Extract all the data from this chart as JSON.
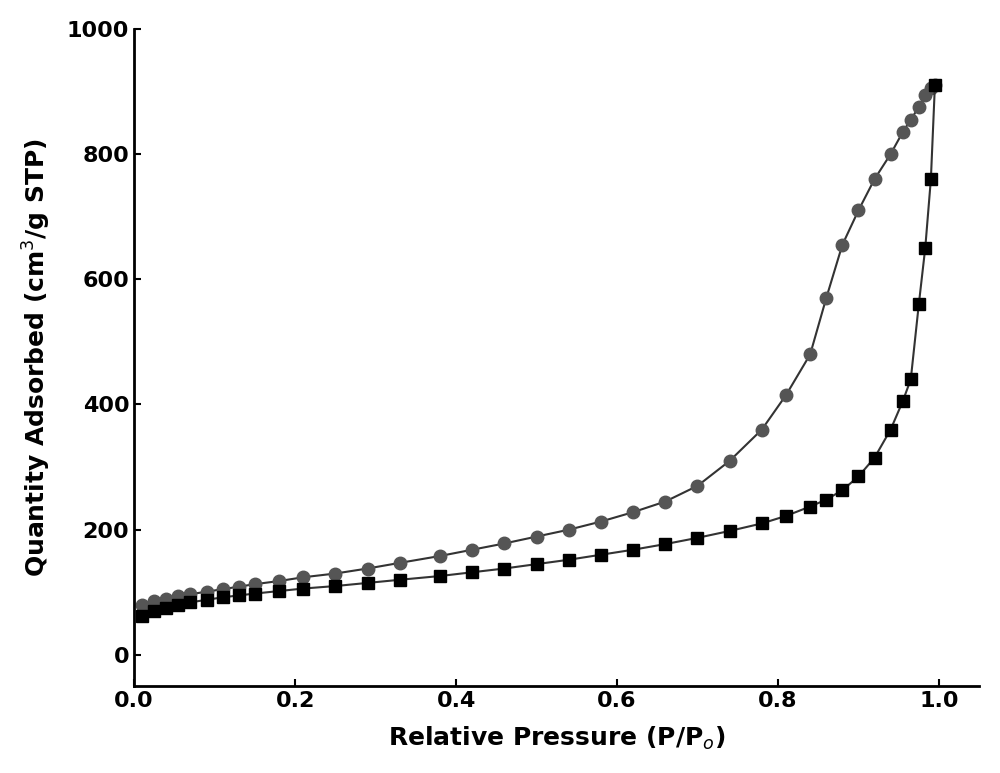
{
  "adsorption_x": [
    0.01,
    0.025,
    0.04,
    0.055,
    0.07,
    0.09,
    0.11,
    0.13,
    0.15,
    0.18,
    0.21,
    0.25,
    0.29,
    0.33,
    0.38,
    0.42,
    0.46,
    0.5,
    0.54,
    0.58,
    0.62,
    0.66,
    0.7,
    0.74,
    0.78,
    0.81,
    0.84,
    0.86,
    0.88,
    0.9,
    0.92,
    0.94,
    0.955,
    0.965,
    0.975,
    0.983,
    0.99,
    0.995
  ],
  "adsorption_y": [
    62,
    70,
    75,
    80,
    84,
    88,
    92,
    95,
    98,
    102,
    106,
    110,
    115,
    120,
    126,
    132,
    138,
    145,
    152,
    160,
    168,
    177,
    187,
    198,
    210,
    222,
    237,
    248,
    263,
    285,
    315,
    360,
    405,
    440,
    560,
    650,
    760,
    910
  ],
  "desorption_x": [
    0.995,
    0.99,
    0.983,
    0.975,
    0.965,
    0.955,
    0.94,
    0.92,
    0.9,
    0.88,
    0.86,
    0.84,
    0.81,
    0.78,
    0.74,
    0.7,
    0.66,
    0.62,
    0.58,
    0.54,
    0.5,
    0.46,
    0.42,
    0.38,
    0.33,
    0.29,
    0.25,
    0.21,
    0.18,
    0.15,
    0.13,
    0.11,
    0.09,
    0.07,
    0.055,
    0.04,
    0.025,
    0.01
  ],
  "desorption_y": [
    910,
    905,
    895,
    875,
    855,
    835,
    800,
    760,
    710,
    655,
    570,
    480,
    415,
    360,
    310,
    270,
    245,
    228,
    213,
    200,
    189,
    178,
    168,
    158,
    147,
    138,
    130,
    124,
    118,
    113,
    109,
    105,
    101,
    97,
    94,
    90,
    86,
    80
  ],
  "square_marker_color": "#000000",
  "circle_marker_color": "#555555",
  "line_color": "#333333",
  "background_color": "#ffffff",
  "xlabel": "Relative Pressure (P/P$_o$)",
  "ylabel": "Quantity Adsorbed (cm$^3$/g STP)",
  "xlim": [
    0.0,
    1.05
  ],
  "ylim": [
    -50,
    1000
  ],
  "xticks": [
    0.0,
    0.2,
    0.4,
    0.6,
    0.8,
    1.0
  ],
  "yticks": [
    0,
    200,
    400,
    600,
    800,
    1000
  ],
  "xlabel_fontsize": 18,
  "ylabel_fontsize": 18,
  "tick_fontsize": 16,
  "marker_size_square": 8,
  "marker_size_circle": 9,
  "line_width": 1.5
}
